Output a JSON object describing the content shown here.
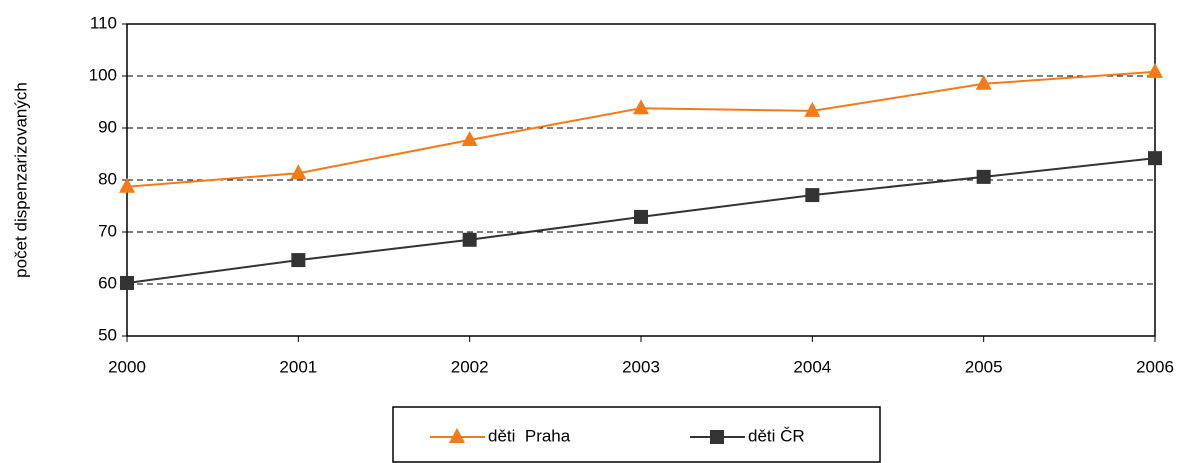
{
  "chart_data": {
    "type": "line",
    "ylabel": "počet dispenzarizovaných",
    "x": [
      2000,
      2001,
      2002,
      2003,
      2004,
      2005,
      2006
    ],
    "xlim": [
      2000,
      2006
    ],
    "xticks": [
      2000,
      2001,
      2002,
      2003,
      2004,
      2005,
      2006
    ],
    "ylim": [
      50,
      110
    ],
    "yticks": [
      50,
      60,
      70,
      80,
      90,
      100,
      110
    ],
    "grid": true,
    "legend": "bottom",
    "series": [
      {
        "name": "děti  Praha",
        "color": "#f47a18",
        "marker": "triangle",
        "values": [
          78.7,
          81.3,
          87.7,
          93.8,
          93.3,
          98.5,
          100.8
        ]
      },
      {
        "name": "děti ČR",
        "color": "#333333",
        "marker": "square",
        "values": [
          60.2,
          64.6,
          68.5,
          72.9,
          77.1,
          80.6,
          84.2
        ]
      }
    ]
  }
}
